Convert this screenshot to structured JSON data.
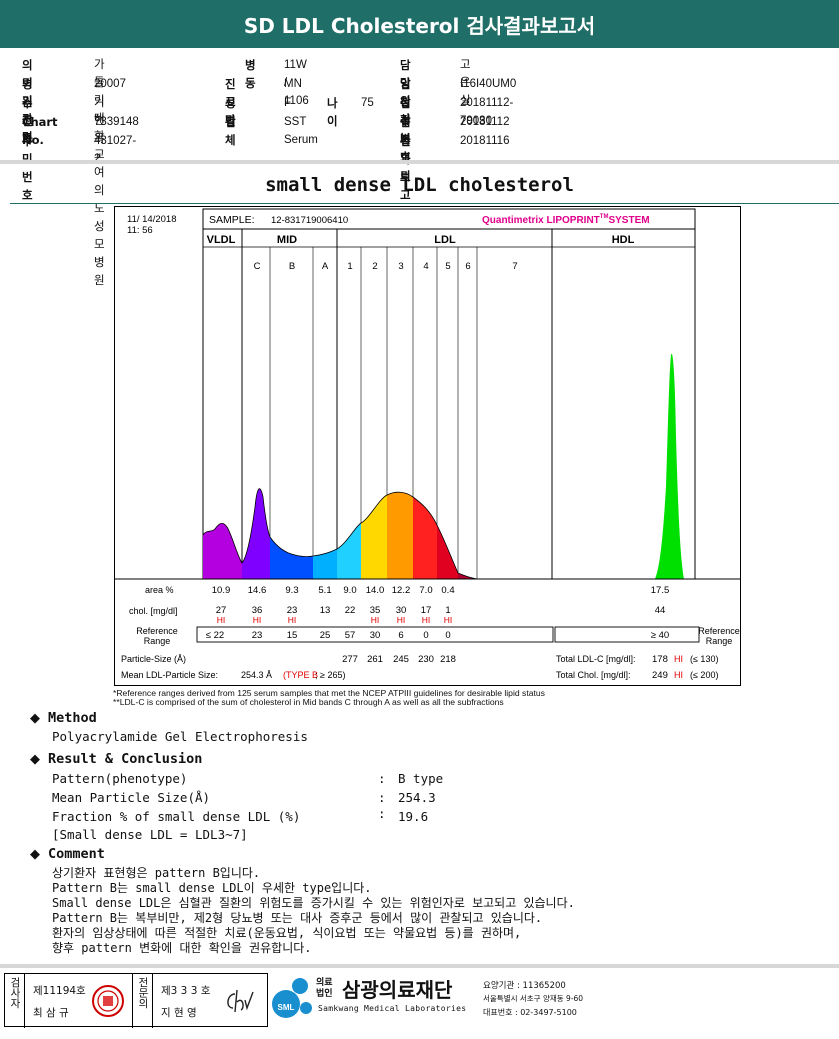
{
  "header": {
    "title": "SD LDL Cholesterol 검사결과보고서"
  },
  "info": {
    "left": [
      {
        "label": "의뢰기관명",
        "value": "가톨릭대학교 여의도성모병원"
      },
      {
        "label": "병원코드",
        "value": "20007"
      },
      {
        "label": "수진자",
        "value": "기현옥"
      },
      {
        "label": "Chart No.",
        "value": "7339148"
      },
      {
        "label": "주민번호",
        "value": "431027-2"
      }
    ],
    "middle": [
      {
        "label": "병동",
        "value": "11W / 1106"
      },
      {
        "label": "진료과",
        "value": "MN"
      },
      {
        "label": "성별",
        "value": "F"
      },
      {
        "label": "검체",
        "value": "SST Serum"
      }
    ],
    "age_label": "나이",
    "age_value": "75",
    "right": [
      {
        "label": "담당의사",
        "value": "고은실"
      },
      {
        "label": "임상정보",
        "value": "I16I40UM0"
      },
      {
        "label": "접수번호",
        "value": "20181112-79030"
      },
      {
        "label": "검사의뢰",
        "value": "20181112"
      },
      {
        "label": "결과보고",
        "value": "20181116"
      }
    ]
  },
  "section_title": "small dense LDL cholesterol",
  "report": {
    "date": "11/ 14/2018",
    "time": "11: 56",
    "sample_label": "SAMPLE:",
    "sample_id": "12-831719006410",
    "system_name": "Quantimetrix LIPOPRINT",
    "system_tm": "TM",
    "system_suffix": "SYSTEM",
    "band_groups": [
      "VLDL",
      "MID",
      "LDL",
      "HDL"
    ],
    "band_subs": [
      "C",
      "B",
      "A",
      "1",
      "2",
      "3",
      "4",
      "5",
      "6",
      "7"
    ],
    "row_area_label": "area %",
    "area_values": [
      "10.9",
      "14.6",
      "9.3",
      "5.1",
      "9.0",
      "14.0",
      "12.2",
      "7.0",
      "0.4",
      "17.5"
    ],
    "row_chol_label": "chol. [mg/dl]",
    "chol_values": [
      "27",
      "36",
      "23",
      "13",
      "22",
      "35",
      "30",
      "17",
      "1",
      "44"
    ],
    "hi_flag": "HI",
    "ref_label_1": "Reference",
    "ref_label_2": "Range",
    "ref_values": [
      "≤ 22",
      "23",
      "15",
      "25",
      "57",
      "30",
      "6",
      "0",
      "0"
    ],
    "hdl_ref": "≥ 40",
    "particle_size_label": "Particle-Size (Å)",
    "particle_sizes": [
      "277",
      "261",
      "245",
      "230",
      "218"
    ],
    "mean_size_label": "Mean LDL-Particle Size:",
    "mean_size_value": "254.3 Å",
    "mean_size_type": "(TYPE B",
    "mean_size_ref": "; ≥ 265)",
    "total_ldl_label": "Total LDL-C [mg/dl]:",
    "total_ldl_value": "178",
    "total_ldl_ref": "(≤ 130)",
    "total_chol_label": "Total Chol. [mg/dl]:",
    "total_chol_value": "249",
    "total_chol_ref": "(≤ 200)"
  },
  "footnotes": [
    "*Reference ranges derived from 125 serum samples that met the NCEP ATPIII guidelines for desirable lipid status",
    "**LDL-C is comprised of the sum of cholesterol in Mid bands C through A as well as all the subfractions"
  ],
  "method": {
    "heading": "Method",
    "text": "Polyacrylamide Gel Electrophoresis"
  },
  "result": {
    "heading": "Result & Conclusion",
    "rows": [
      {
        "label": "Pattern(phenotype)",
        "value": "B type"
      },
      {
        "label": "Mean Particle Size(Å)",
        "value": "254.3"
      },
      {
        "label": "Fraction % of small dense LDL (%)",
        "value": "19.6"
      }
    ],
    "note": "[Small dense LDL = LDL3~7]"
  },
  "comment": {
    "heading": "Comment",
    "lines": [
      "상기환자 표현형은 pattern B입니다.",
      "Pattern B는 small dense LDL이 우세한 type입니다.",
      "Small dense LDL은 심혈관 질환의 위험도를 증가시킬 수 있는 위험인자로 보고되고 있습니다.",
      "Pattern B는 복부비만, 제2형 당뇨병 또는 대사 증후군 등에서 많이 관찰되고 있습니다.",
      "환자의 임상상태에 따른 적절한 치료(운동요법, 식이요법 또는 약물요법 등)를 권하며,",
      "향후 pattern 변화에 대한 확인을 권유합니다."
    ]
  },
  "footer": {
    "examiner_label": "검사자",
    "examiner_no": "제11194호",
    "examiner_name": "최 삼 규",
    "specialist_label": "전문의",
    "specialist_no": "제3 3 3 호",
    "specialist_name": "지 현 영",
    "org_prefix_1": "의료",
    "org_prefix_2": "법인",
    "org_name": "삼광의료재단",
    "org_english": "Samkwang Medical Laboratories",
    "logo_text": "SML",
    "code_line": "요양기관 : 11365200",
    "address_line": "서울특별시 서초구 양재동 9-60",
    "phone_line": "대표번호 : 02-3497-5100"
  },
  "colors": {
    "header_bg": "#1f6e67",
    "hi_red": "#e00000",
    "system_magenta": "#e0008a",
    "vldl": "#b400e0",
    "mid_c": "#8000ff",
    "mid_b": "#0050ff",
    "mid_a": "#00b0ff",
    "ldl1": "#ffd800",
    "ldl2": "#ff9a00",
    "ldl3": "#ff2020",
    "ldl4": "#e00020",
    "hdl": "#00e000"
  }
}
